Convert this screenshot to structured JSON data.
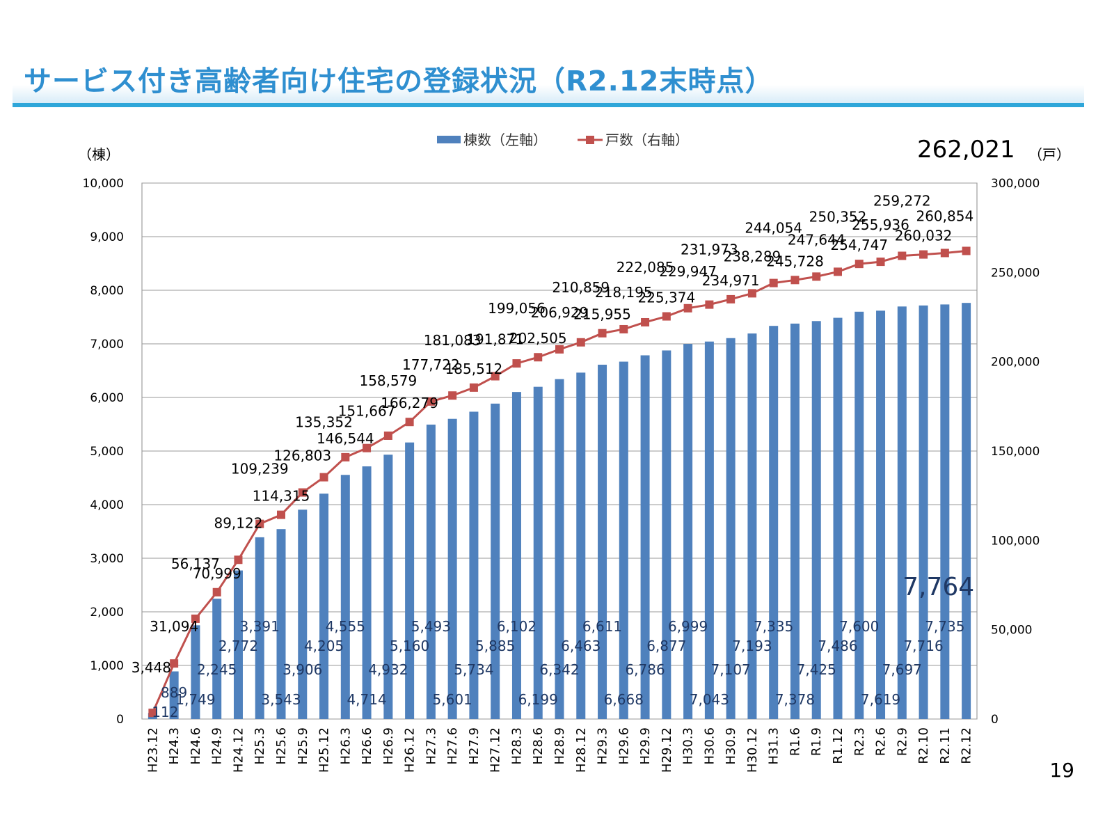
{
  "title": "サービス付き高齢者向け住宅の登録状況（R2.12末時点）",
  "page_number": "19",
  "total_units_label": "262,021",
  "total_units_unit": "（戸）",
  "left_axis_unit": "（棟）",
  "colors": {
    "bar": "#4f81bd",
    "line": "#c0504d",
    "title": "#2f8fd0",
    "accent_line": "#2ea6d9"
  },
  "chart_data": {
    "type": "bar+line",
    "title": "",
    "legend": {
      "placement": "top-center",
      "entries": [
        "棟数（左軸）",
        "戸数（右軸）"
      ]
    },
    "grid": true,
    "categories": [
      "H23.12",
      "H24.3",
      "H24.6",
      "H24.9",
      "H24.12",
      "H25.3",
      "H25.6",
      "H25.9",
      "H25.12",
      "H26.3",
      "H26.6",
      "H26.9",
      "H26.12",
      "H27.3",
      "H27.6",
      "H27.9",
      "H27.12",
      "H28.3",
      "H28.6",
      "H28.9",
      "H28.12",
      "H29.3",
      "H29.6",
      "H29.9",
      "H29.12",
      "H30.3",
      "H30.6",
      "H30.9",
      "H30.12",
      "H31.3",
      "R1.6",
      "R1.9",
      "R1.12",
      "R2.3",
      "R2.6",
      "R2.9",
      "R2.10",
      "R2.11",
      "R2.12"
    ],
    "series": [
      {
        "name": "棟数（左軸）",
        "type": "bar",
        "axis": "left",
        "values": [
          112,
          889,
          1749,
          2245,
          2772,
          3391,
          3543,
          3906,
          4205,
          4555,
          4714,
          4932,
          5160,
          5493,
          5601,
          5734,
          5885,
          6102,
          6199,
          6342,
          6463,
          6611,
          6668,
          6786,
          6877,
          6999,
          7043,
          7107,
          7193,
          7335,
          7378,
          7425,
          7486,
          7600,
          7619,
          7697,
          7716,
          7735,
          7764
        ]
      },
      {
        "name": "戸数（右軸）",
        "type": "line",
        "axis": "right",
        "values": [
          3448,
          31094,
          56137,
          70999,
          89122,
          109239,
          114315,
          126803,
          135352,
          146544,
          151667,
          158579,
          166279,
          177722,
          181083,
          185512,
          191871,
          199056,
          202505,
          206929,
          210859,
          215955,
          218195,
          222085,
          225374,
          229947,
          231973,
          234971,
          238289,
          244054,
          245728,
          247644,
          250352,
          254747,
          255936,
          259272,
          260032,
          260854,
          262021
        ]
      }
    ],
    "y_left": {
      "range": [
        0,
        10000
      ],
      "ticks": [
        "0",
        "1,000",
        "2,000",
        "3,000",
        "4,000",
        "5,000",
        "6,000",
        "7,000",
        "8,000",
        "9,000",
        "10,000"
      ]
    },
    "y_right": {
      "range": [
        0,
        300000
      ],
      "ticks": [
        "0",
        "50,000",
        "100,000",
        "150,000",
        "200,000",
        "250,000",
        "300,000"
      ]
    }
  }
}
